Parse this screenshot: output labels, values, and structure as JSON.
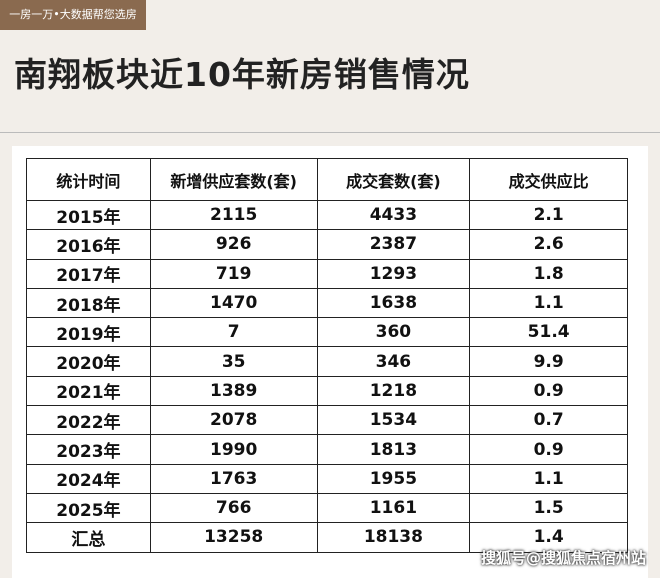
{
  "header": {
    "tag": "一房一万•大数据帮您选房",
    "title": "南翔板块近10年新房销售情况"
  },
  "table": {
    "columns": [
      "统计时间",
      "新增供应套数(套)",
      "成交套数(套)",
      "成交供应比"
    ],
    "rows": [
      [
        "2015年",
        2115,
        4433,
        2.1
      ],
      [
        "2016年",
        926,
        2387,
        2.6
      ],
      [
        "2017年",
        719,
        1293,
        1.8
      ],
      [
        "2018年",
        1470,
        1638,
        1.1
      ],
      [
        "2019年",
        7,
        360,
        51.4
      ],
      [
        "2020年",
        35,
        346,
        9.9
      ],
      [
        "2021年",
        1389,
        1218,
        0.9
      ],
      [
        "2022年",
        2078,
        1534,
        0.7
      ],
      [
        "2023年",
        1990,
        1813,
        0.9
      ],
      [
        "2024年",
        1763,
        1955,
        1.1
      ],
      [
        "2025年",
        766,
        1161,
        1.5
      ],
      [
        "汇总",
        13258,
        18138,
        1.4
      ]
    ]
  },
  "watermark": "搜狐号@搜狐焦点宿州站"
}
